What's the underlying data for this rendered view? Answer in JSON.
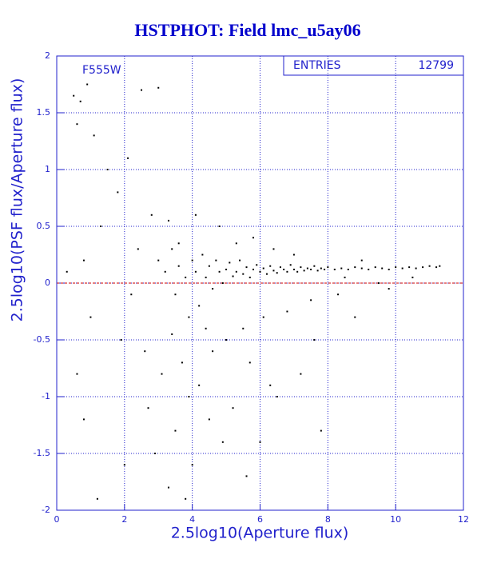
{
  "chart_data": {
    "type": "scatter",
    "title": "HSTPHOT: Field lmc_u5ay06",
    "x_label": "2.5log10(Aperture flux)",
    "y_label": "2.5log10(PSF flux/Aperture flux)",
    "filter_label": "F555W",
    "entries_label": "ENTRIES",
    "entries": 12799,
    "xlim": [
      0,
      12
    ],
    "ylim": [
      -2,
      2
    ],
    "xticks": [
      0,
      2,
      4,
      6,
      8,
      10,
      12
    ],
    "yticks": [
      -2,
      -1.5,
      -1,
      -0.5,
      0,
      0.5,
      1,
      1.5,
      2
    ],
    "grid": true,
    "reference_line": {
      "y": 0,
      "color": "#cc0000"
    },
    "series": [
      {
        "color": "#000000",
        "x": [
          3.0,
          3.2,
          3.4,
          3.5,
          3.6,
          3.8,
          3.9,
          4.0,
          4.1,
          4.2,
          4.3,
          4.4,
          4.5,
          4.6,
          4.7,
          4.8,
          4.9,
          5.0,
          5.1,
          5.2,
          5.3,
          5.4,
          5.5,
          5.6,
          5.7,
          5.8,
          5.9,
          6.0,
          6.1,
          6.2,
          6.3,
          6.4,
          6.5,
          6.6,
          6.7,
          6.8,
          6.9,
          7.0,
          7.1,
          7.2,
          7.3,
          7.4,
          7.5,
          7.6,
          7.7,
          7.8,
          7.9,
          8.0,
          8.2,
          8.4,
          8.6,
          8.8,
          9.0,
          9.2,
          9.4,
          9.6,
          9.8,
          10.0,
          10.2,
          10.4,
          10.6,
          10.8,
          11.0,
          11.2,
          11.3,
          0.5,
          0.7,
          0.9,
          1.1,
          0.6,
          1.5,
          1.8,
          2.1,
          1.3,
          0.8,
          2.5,
          3.0,
          2.8,
          3.3,
          2.4,
          2.2,
          1.9,
          2.6,
          3.1,
          3.7,
          3.9,
          4.2,
          4.6,
          5.0,
          5.5,
          6.1,
          6.8,
          7.5,
          8.3,
          9.5,
          3.5,
          4.0,
          4.5,
          5.2,
          6.0,
          6.5,
          7.2,
          7.8,
          2.9,
          3.3,
          1.2,
          3.8,
          0.8,
          5.8,
          4.8,
          4.1,
          3.6,
          5.3,
          6.4,
          7.0,
          8.5,
          9.0,
          10.5,
          4.4,
          3.4,
          5.7,
          6.3,
          4.9,
          5.6,
          0.3,
          1.0,
          0.6,
          2.0,
          2.7,
          7.6,
          8.8,
          9.8
        ],
        "y": [
          0.2,
          0.1,
          0.3,
          -0.1,
          0.15,
          0.05,
          -0.3,
          0.2,
          0.1,
          -0.2,
          0.25,
          0.05,
          0.15,
          -0.05,
          0.2,
          0.1,
          0.0,
          0.12,
          0.18,
          0.06,
          0.1,
          0.2,
          0.08,
          0.14,
          0.05,
          0.12,
          0.16,
          0.1,
          0.13,
          0.08,
          0.15,
          0.11,
          0.09,
          0.14,
          0.12,
          0.1,
          0.16,
          0.12,
          0.1,
          0.14,
          0.11,
          0.13,
          0.12,
          0.15,
          0.11,
          0.13,
          0.12,
          0.14,
          0.12,
          0.13,
          0.12,
          0.14,
          0.13,
          0.12,
          0.14,
          0.13,
          0.12,
          0.14,
          0.13,
          0.14,
          0.13,
          0.14,
          0.15,
          0.14,
          0.15,
          1.65,
          1.6,
          1.75,
          1.3,
          1.4,
          1.0,
          0.8,
          1.1,
          0.5,
          0.2,
          1.7,
          1.72,
          0.6,
          0.55,
          0.3,
          -0.1,
          -0.5,
          -0.6,
          -0.8,
          -0.7,
          -1.0,
          -0.9,
          -0.6,
          -0.5,
          -0.4,
          -0.3,
          -0.25,
          -0.15,
          -0.1,
          0.0,
          -1.3,
          -1.6,
          -1.2,
          -1.1,
          -1.4,
          -1.0,
          -0.8,
          -1.3,
          -1.5,
          -1.8,
          -1.9,
          -1.9,
          -1.2,
          0.4,
          0.5,
          0.6,
          0.35,
          0.35,
          0.3,
          0.25,
          0.05,
          0.2,
          0.05,
          -0.4,
          -0.45,
          -0.7,
          -0.9,
          -1.4,
          -1.7,
          0.1,
          -0.3,
          -0.8,
          -1.6,
          -1.1,
          -0.5,
          -0.3,
          -0.05
        ]
      }
    ]
  }
}
